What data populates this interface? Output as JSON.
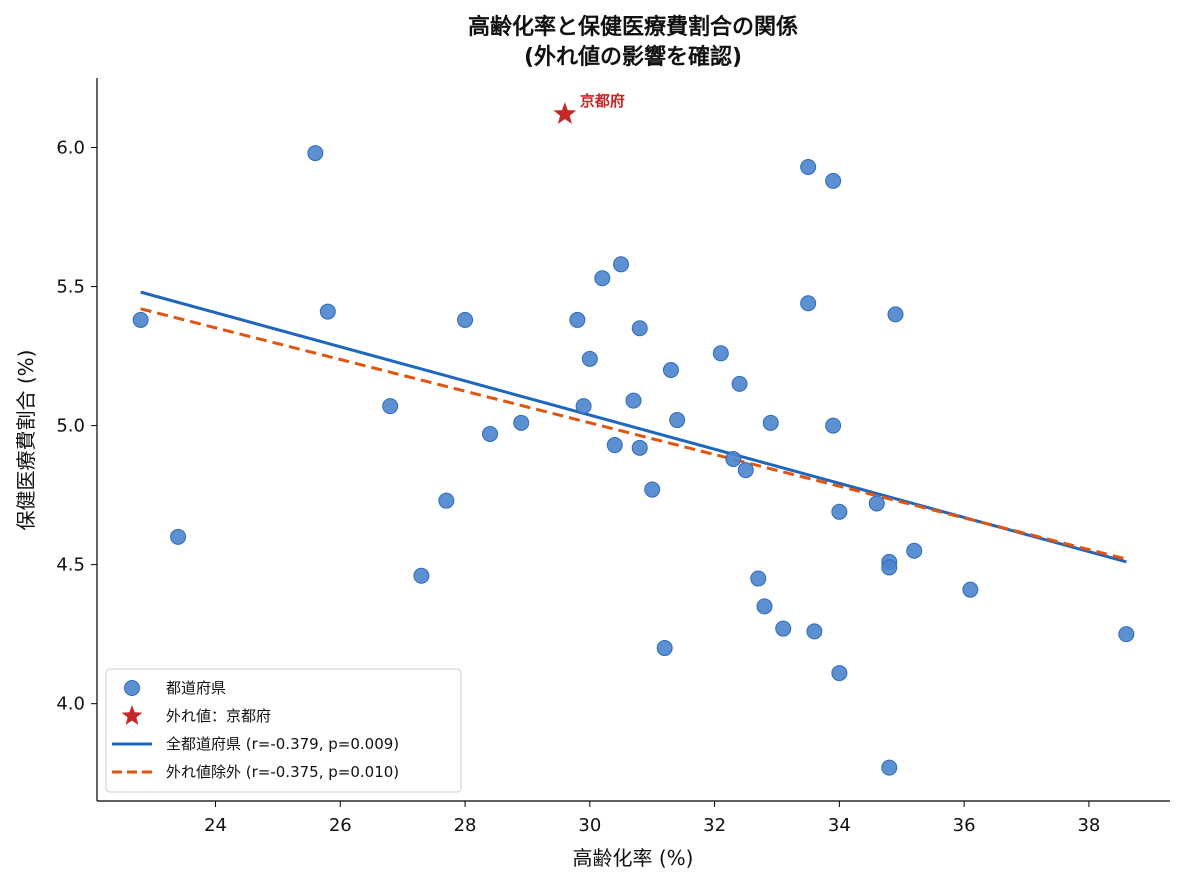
{
  "chart_data": {
    "type": "scatter",
    "title": "高齢化率と保健医療費割合の関係",
    "subtitle": "(外れ値の影響を確認)",
    "xlabel": "高齢化率 (%)",
    "ylabel": "保健医療費割合 (%)",
    "xlim": [
      22.1,
      39.3
    ],
    "ylim": [
      3.65,
      6.25
    ],
    "x_ticks": [
      24,
      26,
      28,
      30,
      32,
      34,
      36,
      38
    ],
    "y_ticks": [
      4.0,
      4.5,
      5.0,
      5.5,
      6.0
    ],
    "x_tick_labels": [
      "24",
      "26",
      "28",
      "30",
      "32",
      "34",
      "36",
      "38"
    ],
    "y_tick_labels": [
      "4.0",
      "4.5",
      "5.0",
      "5.5",
      "6.0"
    ],
    "grid": false,
    "legend_position": "lower-left",
    "colors": {
      "points": "#4a84cc",
      "point_edge": "#2f6bbf",
      "outlier": "#c62828",
      "fit_all": "#1f66bd",
      "fit_excl": "#e0550f",
      "annotation": "#c62828"
    },
    "series": [
      {
        "name": "都道府県",
        "kind": "scatter",
        "points": [
          [
            22.8,
            5.38
          ],
          [
            23.4,
            4.6
          ],
          [
            25.6,
            5.98
          ],
          [
            25.8,
            5.41
          ],
          [
            26.8,
            5.07
          ],
          [
            27.3,
            4.46
          ],
          [
            27.7,
            4.73
          ],
          [
            28.0,
            5.38
          ],
          [
            28.4,
            4.97
          ],
          [
            28.9,
            5.01
          ],
          [
            29.8,
            5.38
          ],
          [
            29.9,
            5.07
          ],
          [
            30.0,
            5.24
          ],
          [
            30.2,
            5.53
          ],
          [
            30.4,
            4.93
          ],
          [
            30.5,
            5.58
          ],
          [
            30.7,
            5.09
          ],
          [
            30.8,
            4.92
          ],
          [
            30.8,
            5.35
          ],
          [
            31.0,
            4.77
          ],
          [
            31.2,
            4.2
          ],
          [
            31.3,
            5.2
          ],
          [
            31.4,
            5.02
          ],
          [
            32.1,
            5.26
          ],
          [
            32.3,
            4.88
          ],
          [
            32.4,
            5.15
          ],
          [
            32.5,
            4.84
          ],
          [
            32.7,
            4.45
          ],
          [
            32.8,
            4.35
          ],
          [
            32.9,
            5.01
          ],
          [
            33.1,
            4.27
          ],
          [
            33.5,
            5.44
          ],
          [
            33.5,
            5.93
          ],
          [
            33.6,
            4.26
          ],
          [
            33.9,
            5.88
          ],
          [
            33.9,
            5.0
          ],
          [
            34.0,
            4.69
          ],
          [
            34.0,
            4.11
          ],
          [
            34.6,
            4.72
          ],
          [
            34.8,
            4.51
          ],
          [
            34.8,
            4.49
          ],
          [
            34.8,
            3.77
          ],
          [
            34.9,
            5.4
          ],
          [
            35.2,
            4.55
          ],
          [
            36.1,
            4.41
          ],
          [
            38.6,
            4.25
          ]
        ]
      },
      {
        "name": "外れ値：京都府",
        "kind": "outlier",
        "points": [
          [
            29.6,
            6.12
          ]
        ]
      },
      {
        "name": "全都道府県 (r=-0.379, p=0.009)",
        "kind": "line",
        "style": "solid",
        "x": [
          22.8,
          38.6
        ],
        "y": [
          5.48,
          4.51
        ]
      },
      {
        "name": "外れ値除外 (r=-0.375, p=0.010)",
        "kind": "line",
        "style": "dashed",
        "x": [
          22.8,
          38.6
        ],
        "y": [
          5.42,
          4.52
        ]
      }
    ],
    "annotations": [
      {
        "text": "京都府",
        "x": 29.6,
        "y": 6.12
      }
    ]
  }
}
